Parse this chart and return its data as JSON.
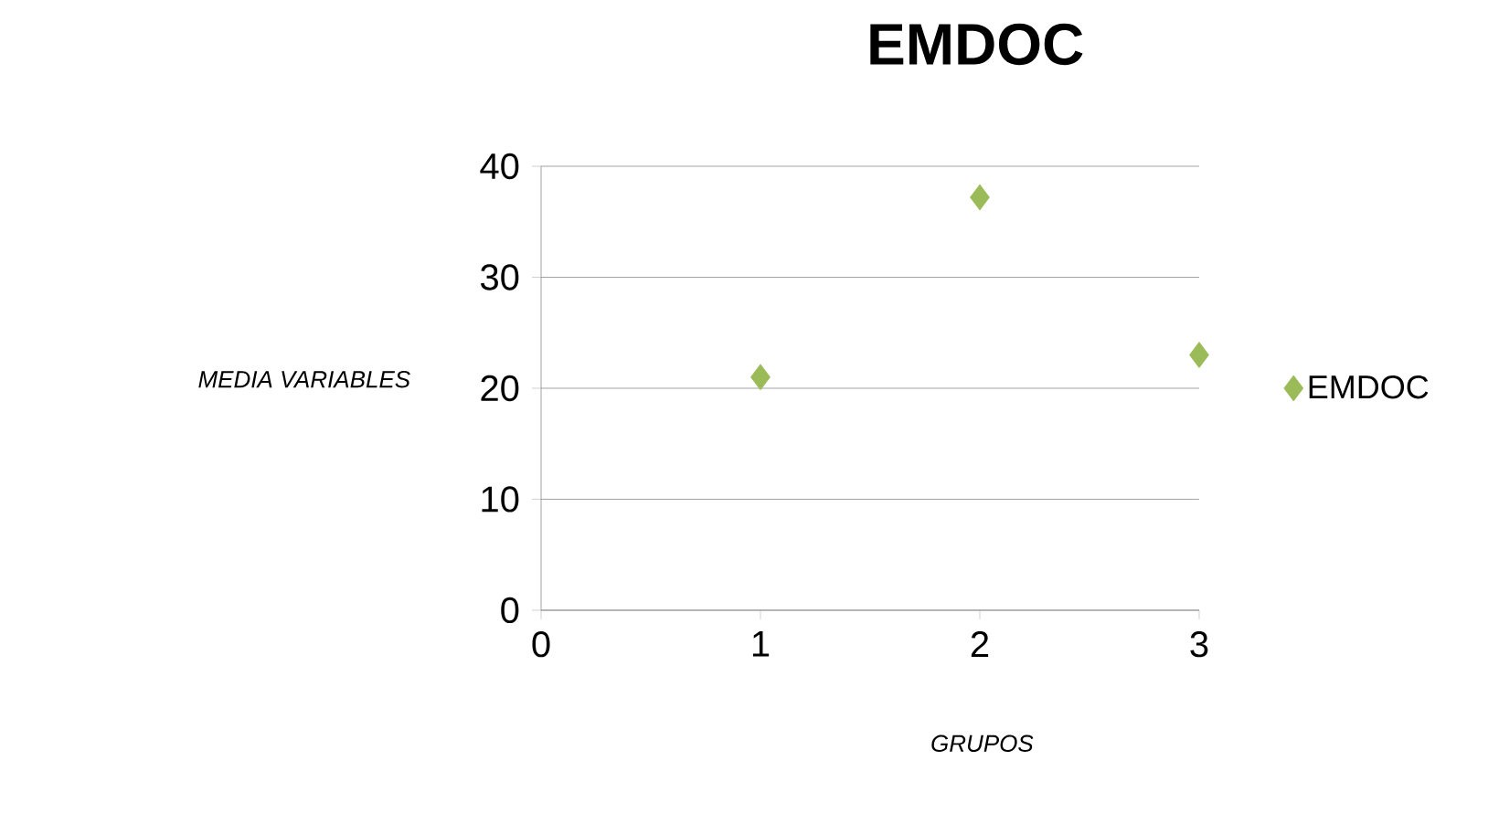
{
  "chart_data": {
    "type": "scatter",
    "title": "EMDOC",
    "xlabel": "GRUPOS",
    "ylabel": "MEDIA VARIABLES",
    "x": [
      1,
      2,
      3
    ],
    "series": [
      {
        "name": "EMDOC",
        "color": "#9bbb59",
        "values": [
          21,
          37.2,
          23
        ]
      }
    ],
    "xlim": [
      0,
      3
    ],
    "xticks": [
      0,
      1,
      2,
      3
    ],
    "ylim": [
      0,
      40
    ],
    "yticks": [
      0,
      10,
      20,
      30,
      40
    ],
    "grid": "y",
    "legend": "right",
    "marker": "diamond"
  }
}
